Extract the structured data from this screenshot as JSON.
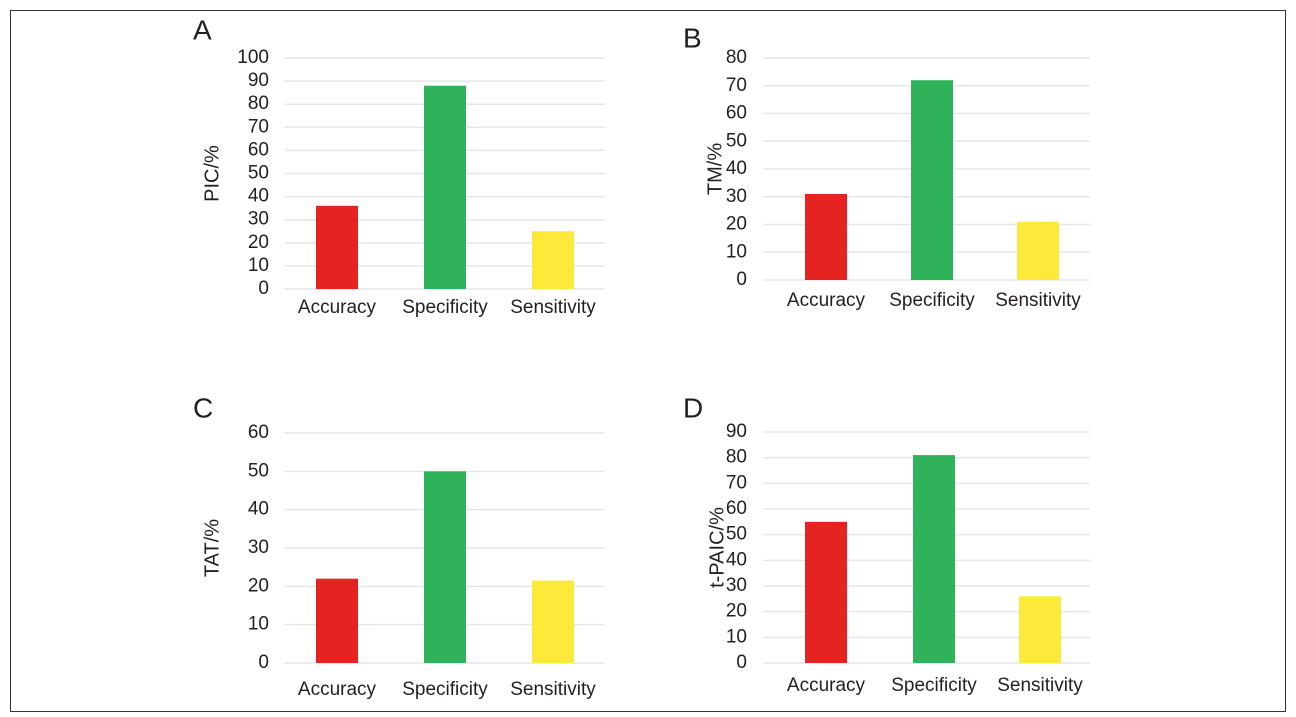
{
  "chart_data": [
    {
      "type": "bar",
      "panel": "A",
      "y_label": "PIC/%",
      "categories": [
        "Accuracy",
        "Specificity",
        "Sensitivity"
      ],
      "values": [
        36,
        88,
        25
      ],
      "colors": [
        "#e52421",
        "#2fb35a",
        "#fde93a"
      ],
      "ylim": [
        0,
        100
      ],
      "yticks": [
        0,
        10,
        20,
        30,
        40,
        50,
        60,
        70,
        80,
        90,
        100
      ],
      "grid": true
    },
    {
      "type": "bar",
      "panel": "B",
      "y_label": "TM/%",
      "categories": [
        "Accuracy",
        "Specificity",
        "Sensitivity"
      ],
      "values": [
        31,
        72,
        21
      ],
      "colors": [
        "#e52421",
        "#2fb35a",
        "#fde93a"
      ],
      "ylim": [
        0,
        80
      ],
      "yticks": [
        0,
        10,
        20,
        30,
        40,
        50,
        60,
        70,
        80
      ],
      "grid": true
    },
    {
      "type": "bar",
      "panel": "C",
      "y_label": "TAT/%",
      "categories": [
        "Accuracy",
        "Specificity",
        "Sensitivity"
      ],
      "values": [
        22,
        50,
        21.5
      ],
      "colors": [
        "#e52421",
        "#2fb35a",
        "#fde93a"
      ],
      "ylim": [
        0,
        60
      ],
      "yticks": [
        0,
        10,
        20,
        30,
        40,
        50,
        60
      ],
      "grid": true
    },
    {
      "type": "bar",
      "panel": "D",
      "y_label": "t-PAIC/%",
      "categories": [
        "Accuracy",
        "Specificity",
        "Sensitivity"
      ],
      "values": [
        55,
        81,
        26
      ],
      "colors": [
        "#e52421",
        "#2fb35a",
        "#fde93a"
      ],
      "ylim": [
        0,
        90
      ],
      "yticks": [
        0,
        10,
        20,
        30,
        40,
        50,
        60,
        70,
        80,
        90
      ],
      "grid": true
    }
  ]
}
